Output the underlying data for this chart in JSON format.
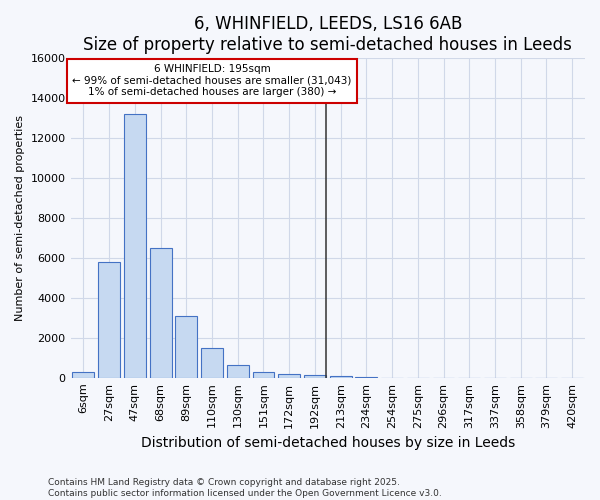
{
  "title": "6, WHINFIELD, LEEDS, LS16 6AB",
  "subtitle": "Size of property relative to semi-detached houses in Leeds",
  "xlabel": "Distribution of semi-detached houses by size in Leeds",
  "ylabel": "Number of semi-detached properties",
  "categories": [
    "6sqm",
    "27sqm",
    "47sqm",
    "68sqm",
    "89sqm",
    "110sqm",
    "130sqm",
    "151sqm",
    "172sqm",
    "192sqm",
    "213sqm",
    "234sqm",
    "254sqm",
    "275sqm",
    "296sqm",
    "317sqm",
    "337sqm",
    "358sqm",
    "379sqm",
    "420sqm"
  ],
  "values": [
    300,
    5800,
    13200,
    6500,
    3100,
    1480,
    650,
    280,
    200,
    150,
    90,
    50,
    10,
    0,
    0,
    0,
    0,
    0,
    0,
    0
  ],
  "bar_color": "#c6d9f1",
  "bar_edge_color": "#4472c4",
  "vline_color": "#333333",
  "annotation_title": "6 WHINFIELD: 195sqm",
  "annotation_line1": "← 99% of semi-detached houses are smaller (31,043)",
  "annotation_line2": "1% of semi-detached houses are larger (380) →",
  "annotation_box_facecolor": "#ffffff",
  "annotation_border_color": "#cc0000",
  "ylim": [
    0,
    16000
  ],
  "yticks": [
    0,
    2000,
    4000,
    6000,
    8000,
    10000,
    12000,
    14000,
    16000
  ],
  "footnote1": "Contains HM Land Registry data © Crown copyright and database right 2025.",
  "footnote2": "Contains public sector information licensed under the Open Government Licence v3.0.",
  "background_color": "#f5f7fc",
  "grid_color": "#d0d8e8",
  "title_fontsize": 12,
  "subtitle_fontsize": 10,
  "xlabel_fontsize": 10,
  "ylabel_fontsize": 8,
  "tick_fontsize": 8,
  "footnote_fontsize": 6.5
}
